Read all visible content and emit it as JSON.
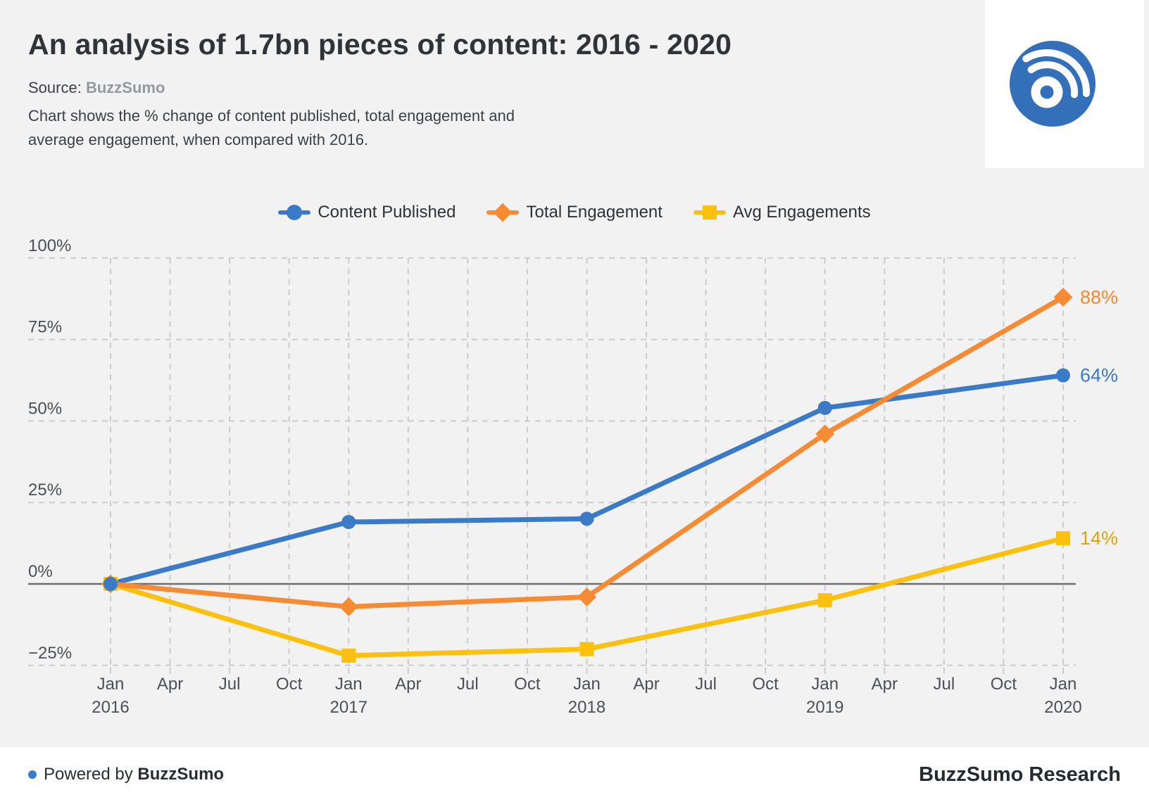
{
  "header": {
    "title": "An analysis of 1.7bn pieces of content: 2016 - 2020",
    "source_label": "Source:",
    "source_value": "BuzzSumo",
    "subtitle_line1": "Chart shows the % change of content published, total engagement and",
    "subtitle_line2": "average engagement, when compared with 2016."
  },
  "footer": {
    "powered_prefix": "Powered by",
    "powered_brand": "BuzzSumo",
    "research": "BuzzSumo Research"
  },
  "colors": {
    "blue": "#3b7ac7",
    "orange": "#f68b33",
    "yellow": "#fcc10f",
    "grid": "#cccccc",
    "zero_line": "#6e6e6e",
    "axis_text": "#4c4f54",
    "logo_blue": "#3470b9",
    "background": "#f2f2f2"
  },
  "chart_data": {
    "type": "line",
    "x": [
      "Jan 2016",
      "Jan 2017",
      "Jan 2018",
      "Jan 2019",
      "Jan 2020"
    ],
    "series": [
      {
        "name": "Content Published",
        "marker": "circle",
        "color": "#3b7ac7",
        "values": [
          0,
          19,
          20,
          54,
          64
        ],
        "end_label": "64%",
        "end_label_color": "#3b7ac7"
      },
      {
        "name": "Total Engagement",
        "marker": "diamond",
        "color": "#f68b33",
        "values": [
          0,
          -7,
          -4,
          46,
          88
        ],
        "end_label": "88%",
        "end_label_color": "#f18a30"
      },
      {
        "name": "Avg Engagements",
        "marker": "square",
        "color": "#fcc10f",
        "values": [
          0,
          -22,
          -20,
          -5,
          14
        ],
        "end_label": "14%",
        "end_label_color": "#dba30f"
      }
    ],
    "y_axis": {
      "ticks": [
        100,
        75,
        50,
        25,
        0,
        -25
      ],
      "tick_labels": [
        "100%",
        "75%",
        "50%",
        "25%",
        "0%",
        "−25%"
      ],
      "range": [
        -25,
        100
      ],
      "baseline": 0
    },
    "x_axis": {
      "tick_months": [
        "Jan",
        "Apr",
        "Jul",
        "Oct",
        "Jan",
        "Apr",
        "Jul",
        "Oct",
        "Jan",
        "Apr",
        "Jul",
        "Oct",
        "Jan",
        "Apr",
        "Jul",
        "Oct",
        "Jan"
      ],
      "tick_years": [
        "2016",
        "2017",
        "2018",
        "2019",
        "2020"
      ]
    },
    "grid": "dashed",
    "legend_position": "top-center"
  }
}
